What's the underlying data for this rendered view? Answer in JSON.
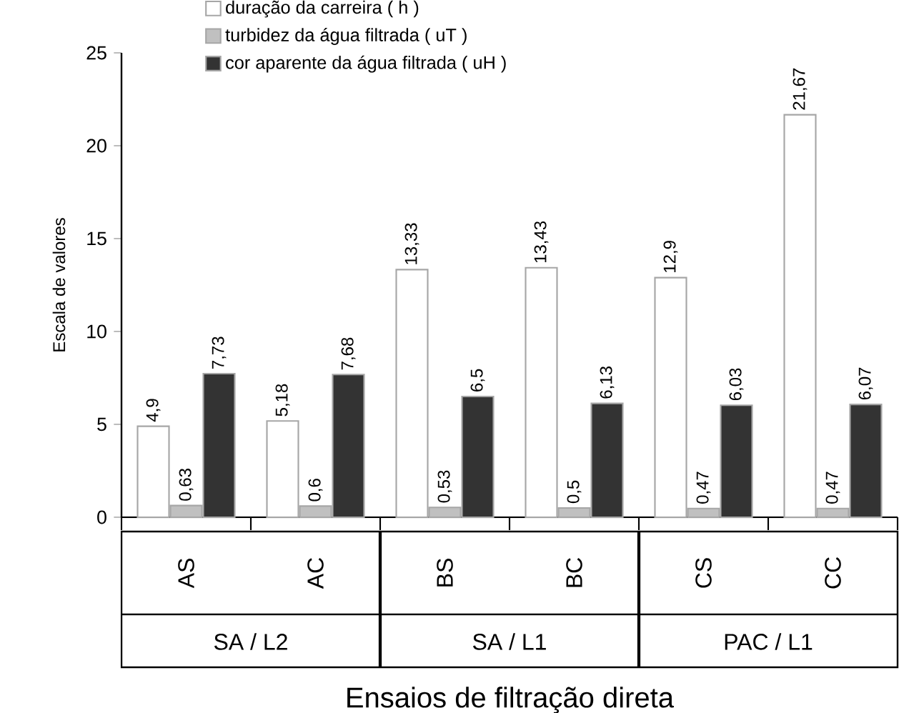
{
  "chart_data": {
    "type": "bar",
    "xlabel": "Ensaios de filtração direta",
    "ylabel": "Escala de valores",
    "categories": [
      "AS",
      "AC",
      "BS",
      "BC",
      "CS",
      "CC"
    ],
    "annotations": [
      "SA / L2",
      "SA / L1",
      "PAC / L1"
    ],
    "series": [
      {
        "name": "duração da carreira ( h )",
        "color": "#ffffff",
        "values": [
          4.9,
          5.18,
          13.33,
          13.43,
          12.9,
          21.67
        ],
        "value_labels": [
          "4,9",
          "5,18",
          "13,33",
          "13,43",
          "12,9",
          "21,67"
        ]
      },
      {
        "name": "turbidez da água filtrada ( uT )",
        "color": "#c0c0c0",
        "values": [
          0.63,
          0.6,
          0.53,
          0.5,
          0.47,
          0.47
        ],
        "value_labels": [
          "0,63",
          "0,6",
          "0,53",
          "0,5",
          "0,47",
          "0,47"
        ]
      },
      {
        "name": "cor aparente da água filtrada ( uH )",
        "color": "#333333",
        "values": [
          7.73,
          7.68,
          6.5,
          6.13,
          6.03,
          6.07
        ],
        "value_labels": [
          "7,73",
          "7,68",
          "6,5",
          "6,13",
          "6,03",
          "6,07"
        ]
      }
    ],
    "ylim": [
      0,
      25
    ],
    "yticks": [
      0,
      5,
      10,
      15,
      20,
      25
    ],
    "grid": false,
    "legend": "top left"
  }
}
